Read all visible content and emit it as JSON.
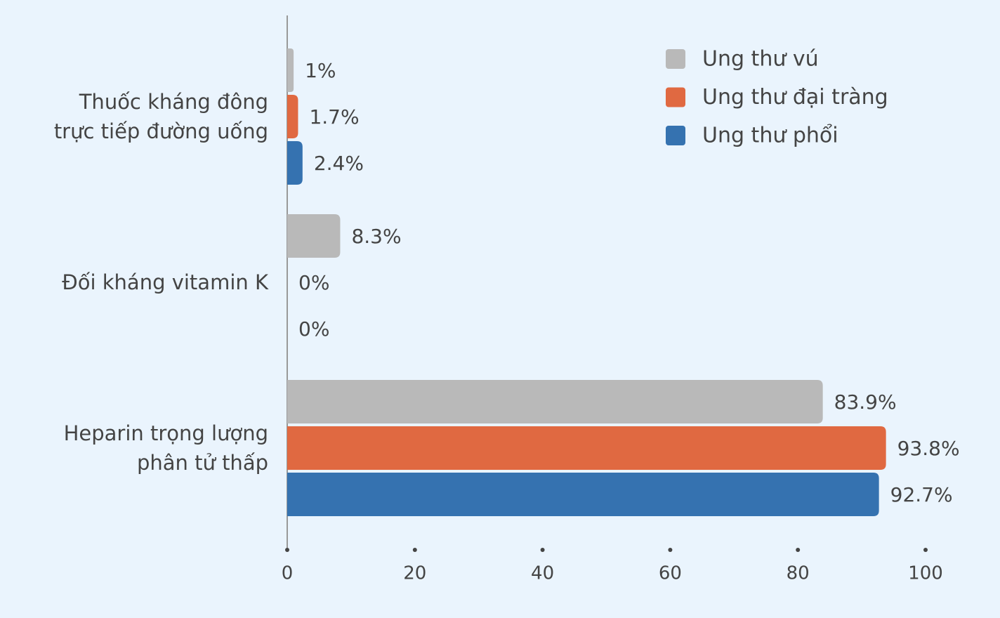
{
  "chart_data": {
    "type": "bar",
    "orientation": "horizontal",
    "categories": [
      "Thuốc kháng đông\ntrực tiếp đường uống",
      "Đối kháng vitamin K",
      "Heparin trọng lượng\nphân tử thấp"
    ],
    "series": [
      {
        "name": "Ung thư vú",
        "color": "#b9b9b9",
        "values": [
          1,
          8.3,
          83.9
        ],
        "value_labels": [
          "1%",
          "8.3%",
          "83.9%"
        ]
      },
      {
        "name": "Ung thư đại tràng",
        "color": "#e06941",
        "values": [
          1.7,
          0,
          93.8
        ],
        "value_labels": [
          "1.7%",
          "0%",
          "93.8%"
        ]
      },
      {
        "name": "Ung thư phổi",
        "color": "#3572b0",
        "values": [
          2.4,
          0,
          92.7
        ],
        "value_labels": [
          "2.4%",
          "0%",
          "92.7%"
        ]
      }
    ],
    "xlim": [
      0,
      100
    ],
    "xticks": [
      0,
      20,
      40,
      60,
      80,
      100
    ],
    "legend": "top-right"
  }
}
